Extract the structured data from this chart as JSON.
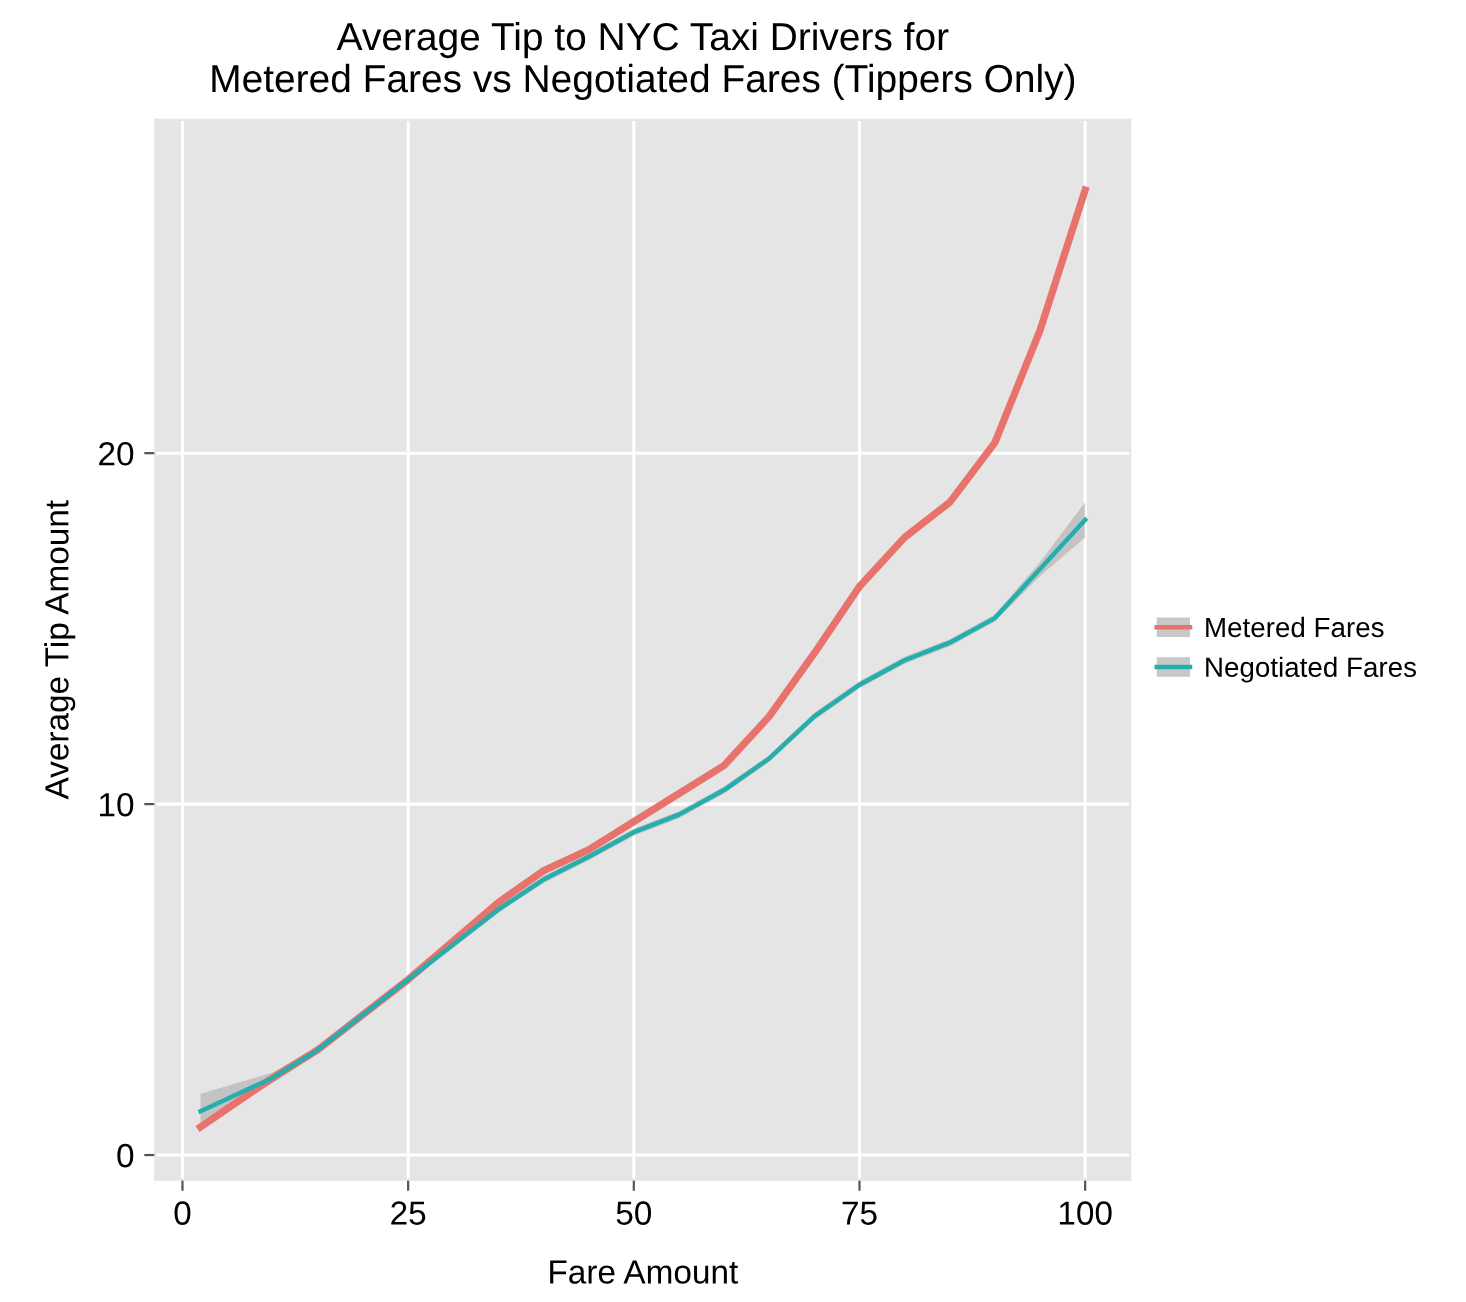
{
  "chart_data": {
    "type": "line",
    "title": "Average Tip to NYC Taxi Drivers for\nMetered Fares vs Negotiated Fares (Tippers Only)",
    "xlabel": "Fare Amount",
    "ylabel": "Average Tip Amount",
    "x": [
      2,
      10,
      15,
      20,
      25,
      30,
      35,
      40,
      45,
      50,
      55,
      60,
      65,
      70,
      75,
      80,
      85,
      90,
      95,
      100
    ],
    "series": [
      {
        "name": "Metered Fares",
        "color": "#e8736c",
        "values": [
          0.8,
          2.2,
          3.0,
          4.0,
          5.0,
          6.1,
          7.2,
          8.1,
          8.7,
          9.5,
          10.3,
          11.1,
          12.5,
          14.3,
          16.2,
          17.6,
          18.6,
          20.3,
          23.5,
          27.5
        ]
      },
      {
        "name": "Negotiated Fares",
        "color": "#24aeae",
        "values": [
          1.25,
          2.2,
          3.0,
          4.0,
          5.0,
          6.0,
          7.0,
          7.85,
          8.5,
          9.2,
          9.7,
          10.4,
          11.3,
          12.5,
          13.4,
          14.1,
          14.6,
          15.3,
          16.7,
          18.1
        ],
        "lower": [
          0.9,
          2.05,
          2.9,
          3.9,
          4.9,
          5.9,
          6.9,
          7.75,
          8.4,
          9.1,
          9.6,
          10.3,
          11.2,
          12.4,
          13.3,
          14.0,
          14.5,
          15.2,
          16.5,
          17.6
        ],
        "upper": [
          1.75,
          2.35,
          3.1,
          4.1,
          5.1,
          6.1,
          7.1,
          7.95,
          8.6,
          9.3,
          9.8,
          10.5,
          11.4,
          12.6,
          13.5,
          14.2,
          14.7,
          15.4,
          16.9,
          18.6
        ]
      }
    ],
    "xlim": [
      -3,
      105
    ],
    "ylim": [
      -0.7,
      29.5
    ],
    "xticks": [
      0,
      25,
      50,
      75,
      100
    ],
    "yticks": [
      0,
      10,
      20
    ],
    "grid": true,
    "legend": "right",
    "line_style": "solid"
  }
}
